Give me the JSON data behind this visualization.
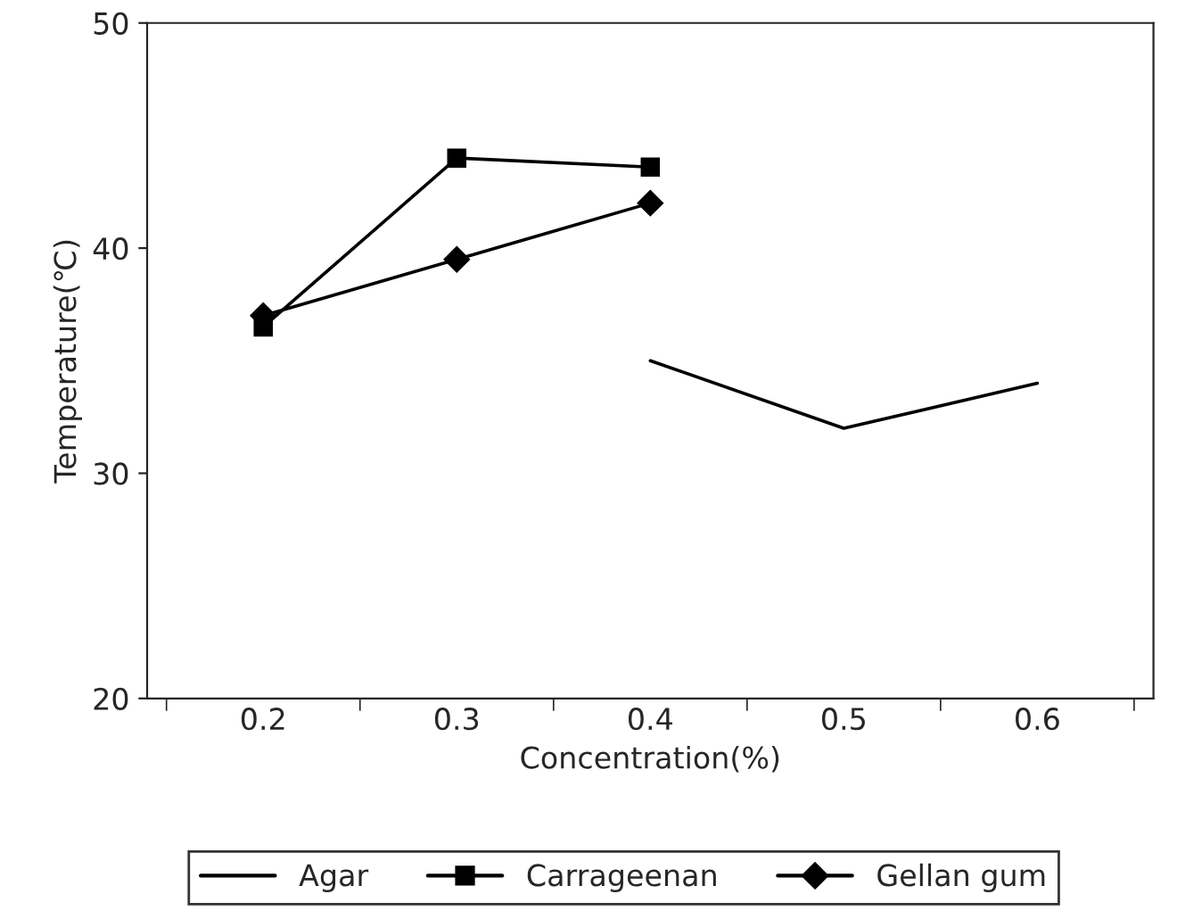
{
  "chart_data": {
    "type": "line",
    "xlabel": "Concentration(%)",
    "ylabel": "Temperature(℃)",
    "categories": [
      "0.2",
      "0.3",
      "0.4",
      "0.5",
      "0.6"
    ],
    "series": [
      {
        "name": "Agar",
        "color": "#000000",
        "marker": "none",
        "values": [
          null,
          null,
          35,
          32,
          34
        ]
      },
      {
        "name": "Carrageenan",
        "color": "#000000",
        "marker": "square",
        "values": [
          36.5,
          44,
          43.6,
          null,
          null
        ]
      },
      {
        "name": "Gellan gum",
        "color": "#000000",
        "marker": "diamond",
        "values": [
          37,
          39.5,
          42,
          null,
          null
        ]
      }
    ],
    "ylim": [
      20,
      50
    ],
    "yticks": [
      20,
      30,
      40,
      50
    ],
    "grid": false,
    "legend": "bottom",
    "line_style": "solid"
  }
}
